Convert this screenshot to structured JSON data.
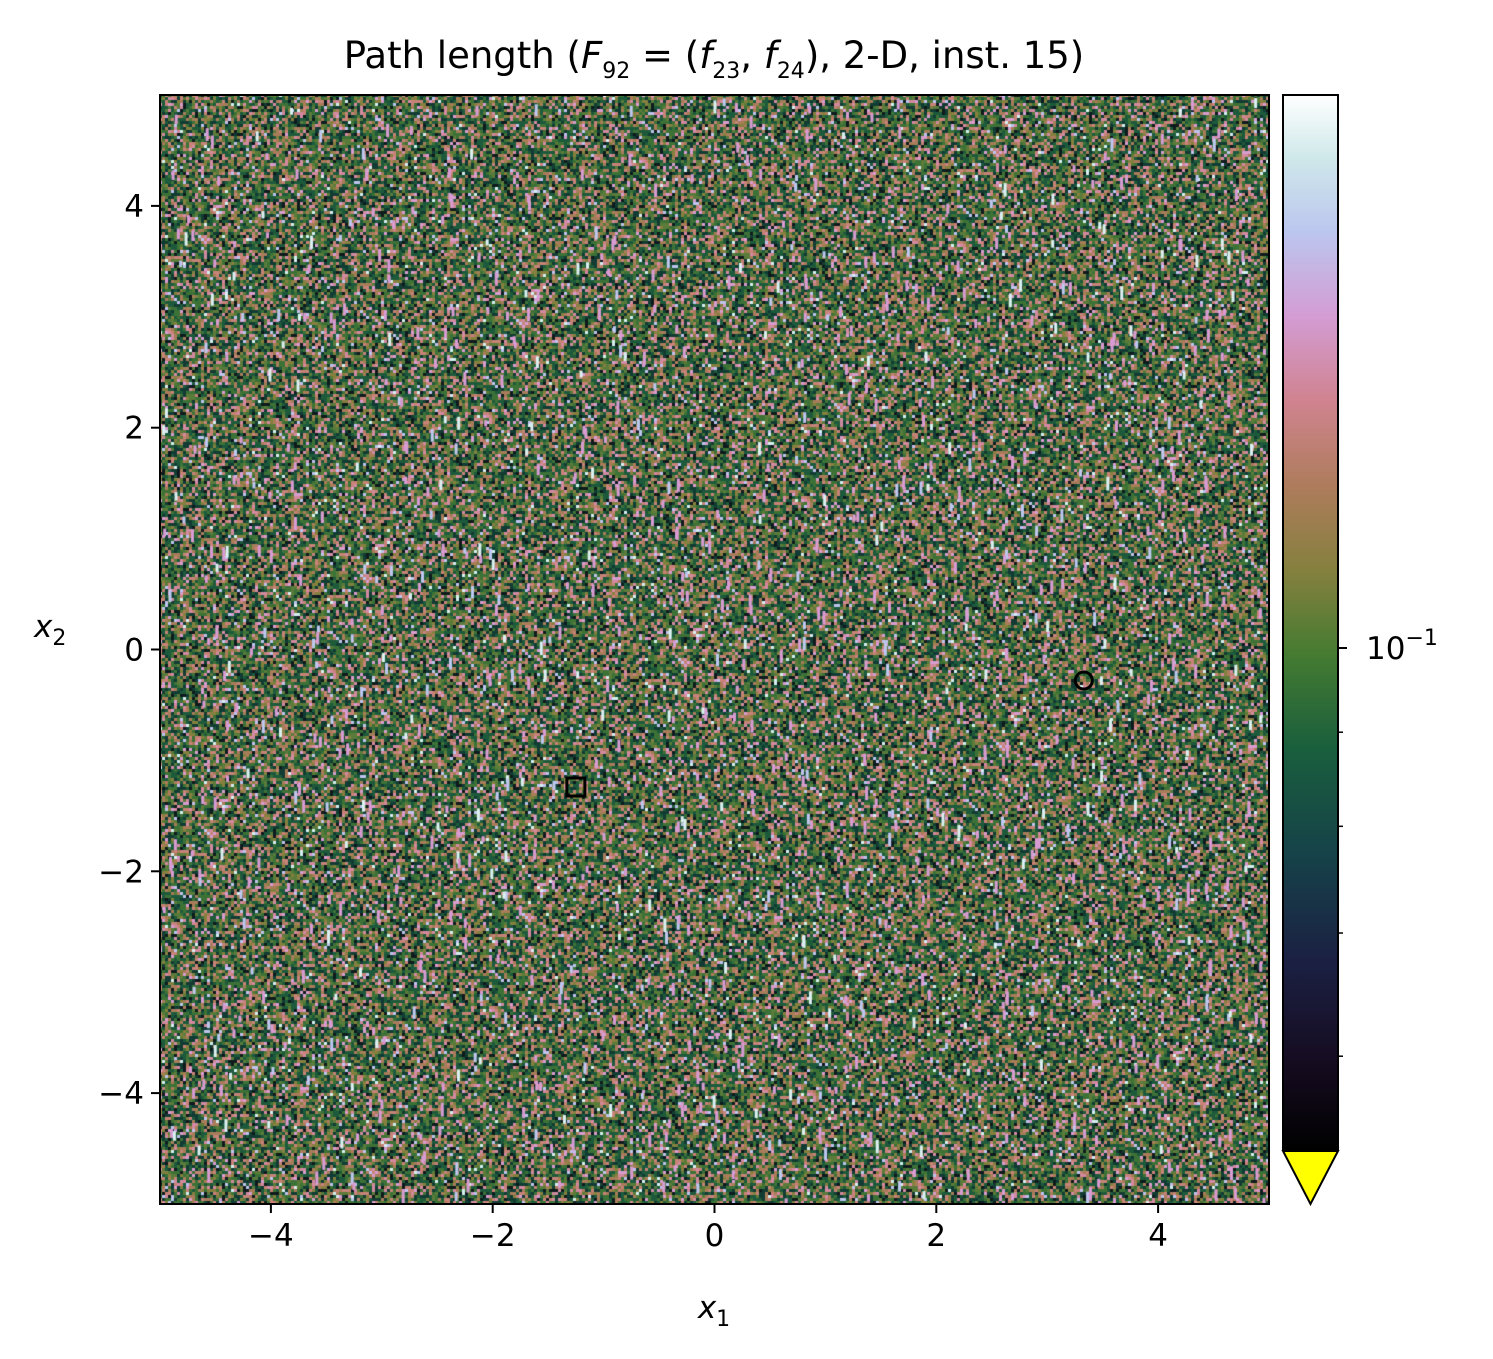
{
  "chart_data": {
    "type": "heatmap",
    "title": {
      "prefix": "Path length (",
      "F": "F",
      "F_sub": "92",
      "eq": " = (",
      "f1": "f",
      "f1_sub": "23",
      "comma": ", ",
      "f2": "f",
      "f2_sub": "24",
      "suffix": "), 2-D, inst. 15)"
    },
    "xlabel": {
      "base": "x",
      "sub": "1"
    },
    "ylabel": {
      "base": "x",
      "sub": "2"
    },
    "xlim": [
      -5,
      5
    ],
    "ylim": [
      -5,
      5
    ],
    "x_ticks": [
      -4,
      -2,
      0,
      2,
      4
    ],
    "y_ticks": [
      -4,
      -2,
      0,
      2,
      4
    ],
    "x_tick_labels": [
      "−4",
      "−2",
      "0",
      "2",
      "4"
    ],
    "y_tick_labels": [
      "−4",
      "−2",
      "0",
      "2",
      "4"
    ],
    "grid": false,
    "colormap": "cubehelix",
    "colorbar": {
      "scale": "log",
      "major_tick_value": 0.1,
      "major_tick_label": {
        "base": "10",
        "exp": "−1"
      },
      "extend": "min",
      "extend_color": "#ffff00"
    },
    "markers": [
      {
        "shape": "circle",
        "x": 3.33,
        "y": -0.28,
        "color": "#000000"
      },
      {
        "shape": "square",
        "x": -1.25,
        "y": -1.24,
        "color": "#000000"
      }
    ]
  }
}
